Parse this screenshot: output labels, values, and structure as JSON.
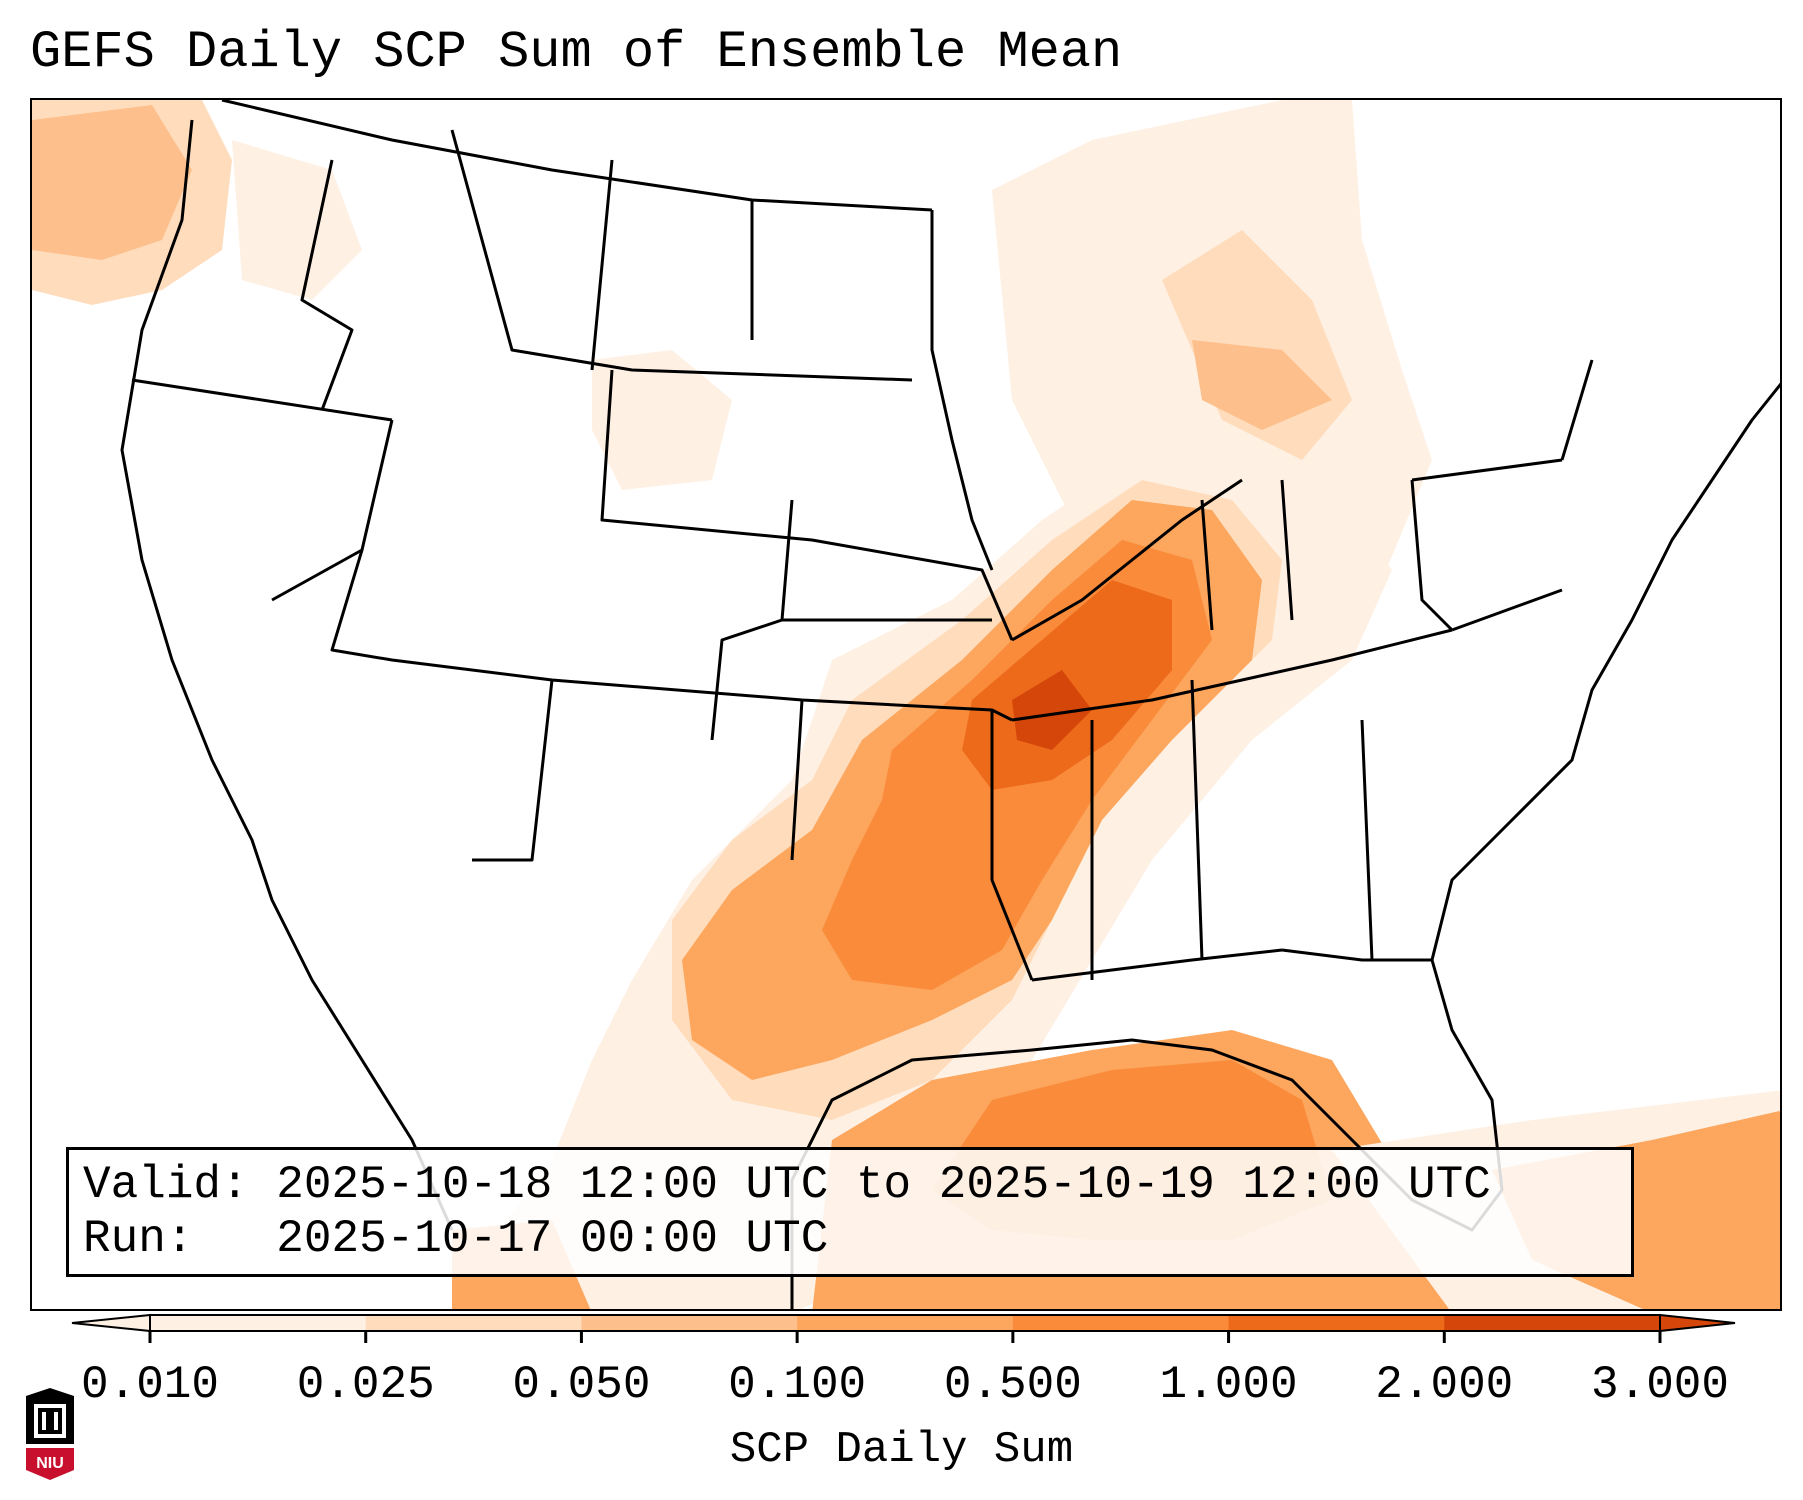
{
  "title": "GEFS Daily SCP Sum of Ensemble Mean",
  "info": {
    "valid_label": "Valid:",
    "valid_value": "2025-10-18 12:00 UTC to 2025-10-19 12:00 UTC",
    "run_label": "Run:",
    "run_value": "2025-10-17 00:00 UTC"
  },
  "colorbar": {
    "label": "SCP Daily Sum",
    "ticks": [
      "0.010",
      "0.025",
      "0.050",
      "0.100",
      "0.500",
      "1.000",
      "2.000",
      "3.000"
    ],
    "colors": [
      "#fff0e4",
      "#fedcbc",
      "#fdc08c",
      "#fca65e",
      "#f98b3a",
      "#ec6a1a",
      "#d4460a"
    ],
    "extend": "both"
  },
  "logo_text": "NIU"
}
